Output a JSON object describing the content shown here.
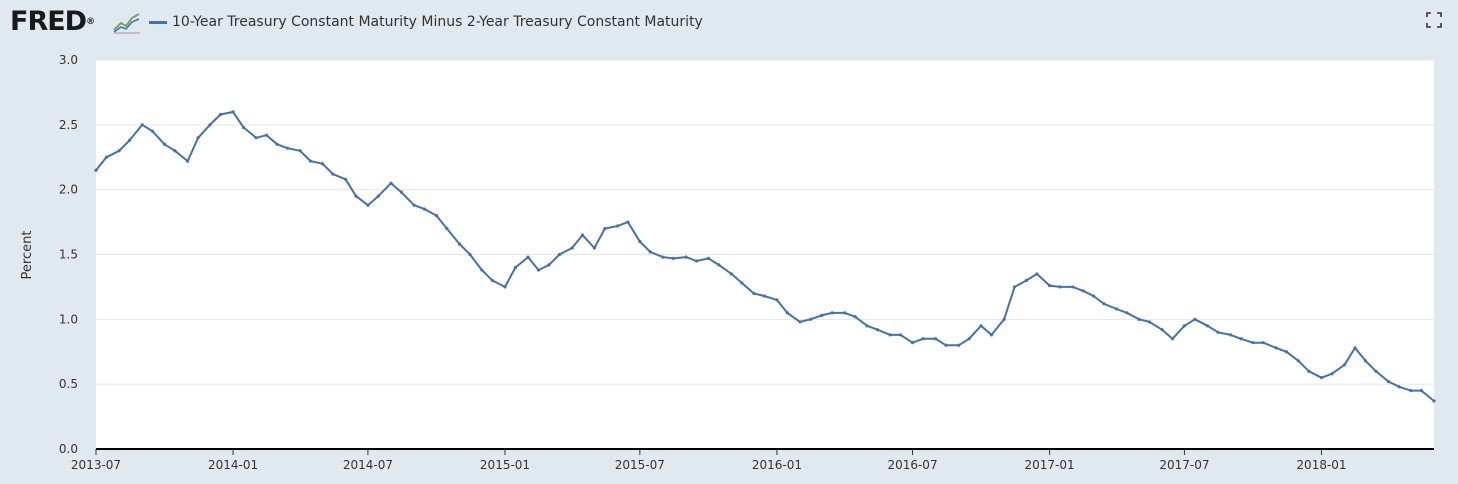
{
  "header": {
    "logo_text": "FRED",
    "logo_mark": "®",
    "legend_label": "10-Year Treasury Constant Maturity Minus 2-Year Treasury Constant Maturity",
    "fullscreen_icon": "fullscreen-icon"
  },
  "chart_data": {
    "type": "line",
    "title": "",
    "xlabel": "",
    "ylabel": "Percent",
    "ylim": [
      0.0,
      3.0
    ],
    "yticks": [
      "0.0",
      "0.5",
      "1.0",
      "1.5",
      "2.0",
      "2.5",
      "3.0"
    ],
    "xlim": [
      "2013-07-01",
      "2018-06-01"
    ],
    "xticks": [
      "2013-07",
      "2014-01",
      "2014-07",
      "2015-01",
      "2015-07",
      "2016-01",
      "2016-07",
      "2017-01",
      "2017-07",
      "2018-01"
    ],
    "grid": true,
    "series": [
      {
        "name": "10-Year Treasury Constant Maturity Minus 2-Year Treasury Constant Maturity",
        "color": "#4572a7",
        "x": [
          "2013-07-01",
          "2013-07-15",
          "2013-08-01",
          "2013-08-15",
          "2013-09-01",
          "2013-09-15",
          "2013-10-01",
          "2013-10-15",
          "2013-11-01",
          "2013-11-15",
          "2013-12-01",
          "2013-12-15",
          "2014-01-01",
          "2014-01-15",
          "2014-02-01",
          "2014-02-15",
          "2014-03-01",
          "2014-03-15",
          "2014-04-01",
          "2014-04-15",
          "2014-05-01",
          "2014-05-15",
          "2014-06-01",
          "2014-06-15",
          "2014-07-01",
          "2014-07-15",
          "2014-08-01",
          "2014-08-15",
          "2014-09-01",
          "2014-09-15",
          "2014-10-01",
          "2014-10-15",
          "2014-11-01",
          "2014-11-15",
          "2014-12-01",
          "2014-12-15",
          "2015-01-01",
          "2015-01-15",
          "2015-02-01",
          "2015-02-15",
          "2015-03-01",
          "2015-03-15",
          "2015-04-01",
          "2015-04-15",
          "2015-05-01",
          "2015-05-15",
          "2015-06-01",
          "2015-06-15",
          "2015-07-01",
          "2015-07-15",
          "2015-08-01",
          "2015-08-15",
          "2015-09-01",
          "2015-09-15",
          "2015-10-01",
          "2015-10-15",
          "2015-11-01",
          "2015-11-15",
          "2015-12-01",
          "2015-12-15",
          "2016-01-01",
          "2016-01-15",
          "2016-02-01",
          "2016-02-15",
          "2016-03-01",
          "2016-03-15",
          "2016-04-01",
          "2016-04-15",
          "2016-05-01",
          "2016-05-15",
          "2016-06-01",
          "2016-06-15",
          "2016-07-01",
          "2016-07-15",
          "2016-08-01",
          "2016-08-15",
          "2016-09-01",
          "2016-09-15",
          "2016-10-01",
          "2016-10-15",
          "2016-11-01",
          "2016-11-15",
          "2016-12-01",
          "2016-12-15",
          "2017-01-01",
          "2017-01-15",
          "2017-02-01",
          "2017-02-15",
          "2017-03-01",
          "2017-03-15",
          "2017-04-01",
          "2017-04-15",
          "2017-05-01",
          "2017-05-15",
          "2017-06-01",
          "2017-06-15",
          "2017-07-01",
          "2017-07-15",
          "2017-08-01",
          "2017-08-15",
          "2017-09-01",
          "2017-09-15",
          "2017-10-01",
          "2017-10-15",
          "2017-11-01",
          "2017-11-15",
          "2017-12-01",
          "2017-12-15",
          "2018-01-01",
          "2018-01-15",
          "2018-02-01",
          "2018-02-15",
          "2018-03-01",
          "2018-03-15",
          "2018-04-01",
          "2018-04-15",
          "2018-05-01",
          "2018-05-15",
          "2018-06-01"
        ],
        "values": [
          2.15,
          2.25,
          2.3,
          2.38,
          2.5,
          2.45,
          2.35,
          2.3,
          2.22,
          2.4,
          2.5,
          2.58,
          2.6,
          2.48,
          2.4,
          2.42,
          2.35,
          2.32,
          2.3,
          2.22,
          2.2,
          2.12,
          2.08,
          1.95,
          1.88,
          1.95,
          2.05,
          1.98,
          1.88,
          1.85,
          1.8,
          1.7,
          1.58,
          1.5,
          1.38,
          1.3,
          1.25,
          1.4,
          1.48,
          1.38,
          1.42,
          1.5,
          1.55,
          1.65,
          1.55,
          1.7,
          1.72,
          1.75,
          1.6,
          1.52,
          1.48,
          1.47,
          1.48,
          1.45,
          1.47,
          1.42,
          1.35,
          1.28,
          1.2,
          1.18,
          1.15,
          1.05,
          0.98,
          1.0,
          1.03,
          1.05,
          1.05,
          1.02,
          0.95,
          0.92,
          0.88,
          0.88,
          0.82,
          0.85,
          0.85,
          0.8,
          0.8,
          0.85,
          0.95,
          0.88,
          1.0,
          1.25,
          1.3,
          1.35,
          1.26,
          1.25,
          1.25,
          1.22,
          1.18,
          1.12,
          1.08,
          1.05,
          1.0,
          0.98,
          0.92,
          0.85,
          0.95,
          1.0,
          0.95,
          0.9,
          0.88,
          0.85,
          0.82,
          0.82,
          0.78,
          0.75,
          0.68,
          0.6,
          0.55,
          0.58,
          0.65,
          0.78,
          0.68,
          0.6,
          0.52,
          0.48,
          0.45,
          0.45,
          0.37
        ]
      }
    ]
  }
}
